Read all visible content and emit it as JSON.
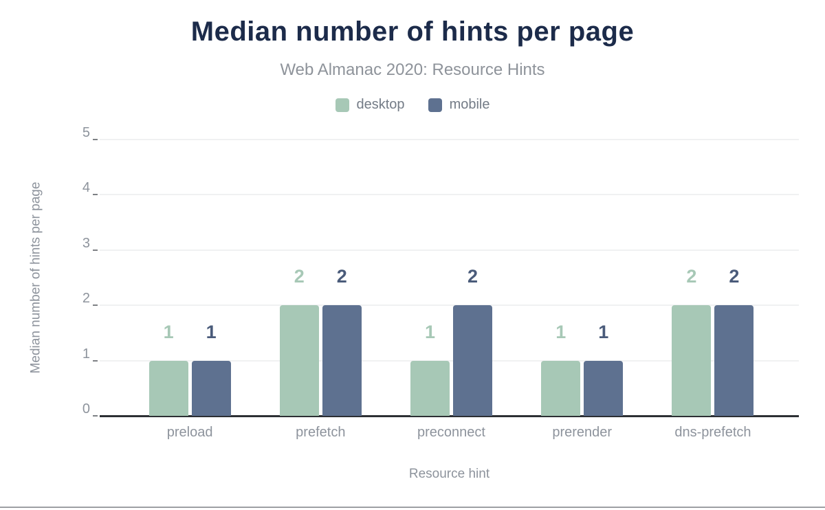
{
  "header": {
    "title": "Median number of hints per page",
    "subtitle": "Web Almanac 2020: Resource Hints"
  },
  "colors": {
    "title": "#1c2b4a",
    "subtitle": "#8e939a",
    "axis_text": "#8d939c",
    "gridline": "#f0f1f2",
    "axis_line": "#2c2f33",
    "desktop": "#a7c8b6",
    "mobile": "#5e7190",
    "mobile_value_label": "#4a5b7a",
    "bottom_border": "#9d9fa3"
  },
  "chart_data": {
    "type": "bar",
    "title": "Median number of hints per page",
    "subtitle": "Web Almanac 2020: Resource Hints",
    "categories": [
      "preload",
      "prefetch",
      "preconnect",
      "prerender",
      "dns-prefetch"
    ],
    "series": [
      {
        "name": "desktop",
        "color": "#a7c8b6",
        "label_color": "#a7c8b6",
        "values": [
          1,
          2,
          1,
          1,
          2
        ]
      },
      {
        "name": "mobile",
        "color": "#5e7190",
        "label_color": "#4a5b7a",
        "values": [
          1,
          2,
          2,
          1,
          2
        ]
      }
    ],
    "xlabel": "Resource hint",
    "ylabel": "Median number of hints per page",
    "ylim": [
      0,
      5
    ],
    "yticks": [
      0,
      1,
      2,
      3,
      4,
      5
    ],
    "grid": true,
    "legend_position": "top"
  }
}
